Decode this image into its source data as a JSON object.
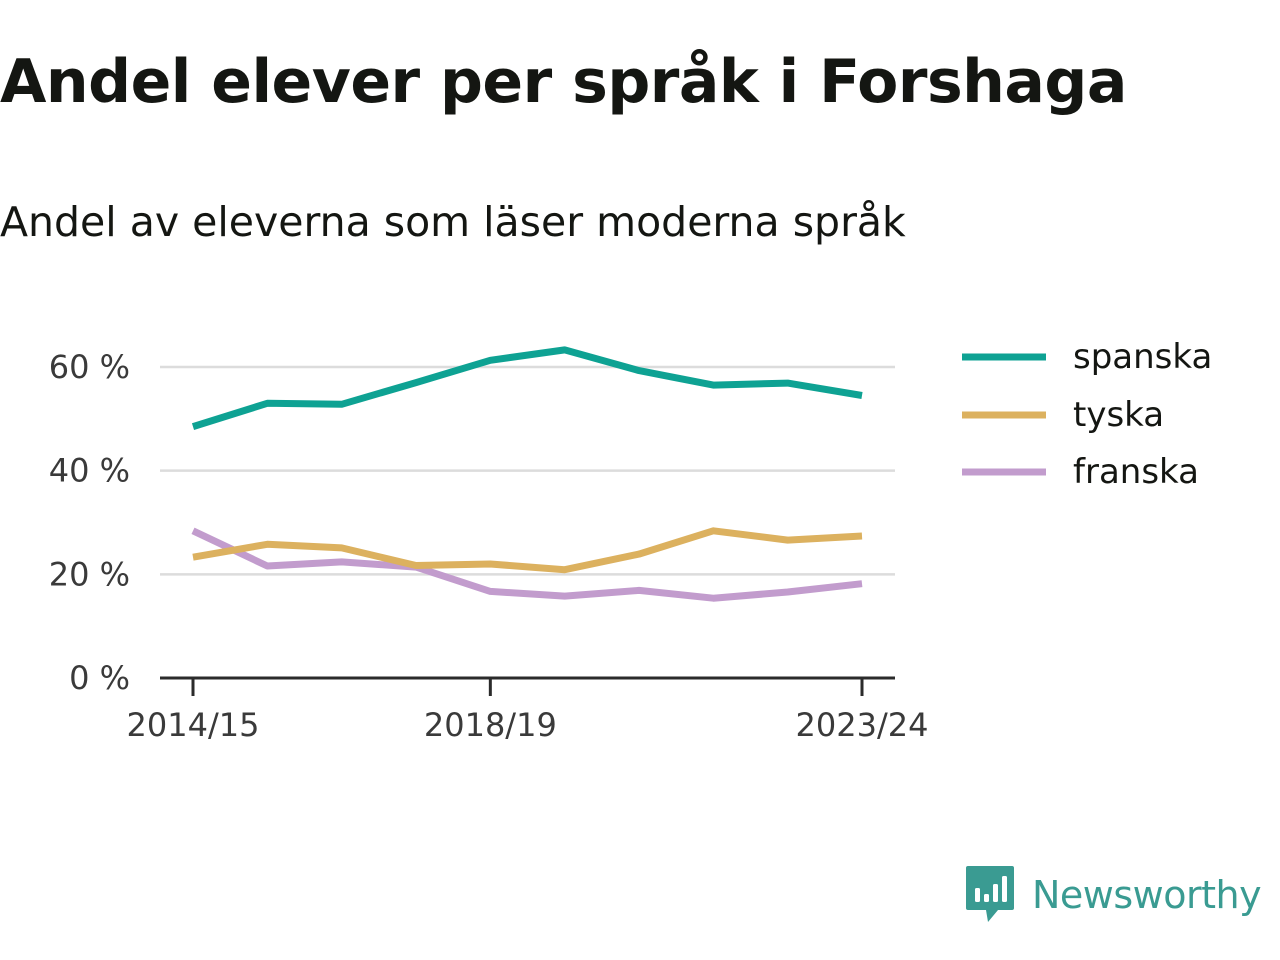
{
  "title": "Andel elever per språk i Forshaga",
  "subtitle": "Andel av eleverna som läser moderna språk",
  "brand": {
    "name": "Newsworthy",
    "icon": "newsworthy-logo-icon",
    "color": "#3a9b92"
  },
  "chart_data": {
    "type": "line",
    "title": "Andel elever per språk i Forshaga",
    "subtitle": "Andel av eleverna som läser moderna språk",
    "x": [
      "2014/15",
      "2015/16",
      "2016/17",
      "2017/18",
      "2018/19",
      "2019/20",
      "2020/21",
      "2021/22",
      "2022/23",
      "2023/24"
    ],
    "x_tick_labels": [
      "2014/15",
      "2018/19",
      "2023/24"
    ],
    "y_ticks": [
      0,
      20,
      40,
      60
    ],
    "y_tick_labels": [
      "0 %",
      "20 %",
      "40 %",
      "60 %"
    ],
    "ylim": [
      0,
      65
    ],
    "grid": true,
    "legend_position": "right",
    "series": [
      {
        "name": "spanska",
        "color": "#0ea293",
        "values": [
          48.5,
          53.0,
          52.8,
          57.0,
          61.3,
          63.3,
          59.3,
          56.5,
          56.9,
          54.5
        ]
      },
      {
        "name": "tyska",
        "color": "#dcb15f",
        "values": [
          23.3,
          25.8,
          25.1,
          21.7,
          22.0,
          20.9,
          23.9,
          28.4,
          26.6,
          27.4
        ]
      },
      {
        "name": "franska",
        "color": "#c29ccd",
        "values": [
          28.4,
          21.6,
          22.4,
          21.4,
          16.7,
          15.8,
          16.9,
          15.4,
          16.6,
          18.2
        ]
      }
    ]
  }
}
